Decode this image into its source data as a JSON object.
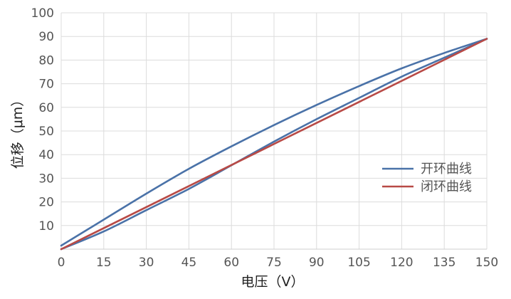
{
  "chart_data": {
    "type": "line",
    "title": "",
    "xlabel": "电压（V）",
    "ylabel": "位移（μm）",
    "xlim": [
      0,
      150
    ],
    "ylim": [
      0,
      100
    ],
    "x_ticks": [
      "0",
      "15",
      "30",
      "45",
      "60",
      "75",
      "90",
      "105",
      "120",
      "135",
      "150"
    ],
    "y_ticks": [
      "10",
      "20",
      "30",
      "40",
      "50",
      "60",
      "70",
      "80",
      "90",
      "100"
    ],
    "grid": true,
    "legend": "right",
    "series": [
      {
        "name": "开环曲线",
        "color": "#4a72a8",
        "branches": [
          {
            "x": [
              0,
              15,
              30,
              45,
              60,
              75,
              90,
              105,
              120,
              135,
              150
            ],
            "y": [
              1.5,
              12.5,
              23.5,
              34,
              43.5,
              52.5,
              61,
              69,
              76.5,
              83,
              89
            ]
          },
          {
            "x": [
              0,
              15,
              30,
              45,
              60,
              75,
              90,
              105,
              120,
              135,
              150
            ],
            "y": [
              0,
              7.5,
              16.5,
              25.5,
              35.5,
              45.5,
              55,
              64,
              73,
              81,
              89
            ]
          }
        ]
      },
      {
        "name": "闭环曲线",
        "color": "#b84a46",
        "branches": [
          {
            "x": [
              0,
              150
            ],
            "y": [
              0,
              89
            ]
          }
        ]
      }
    ]
  }
}
